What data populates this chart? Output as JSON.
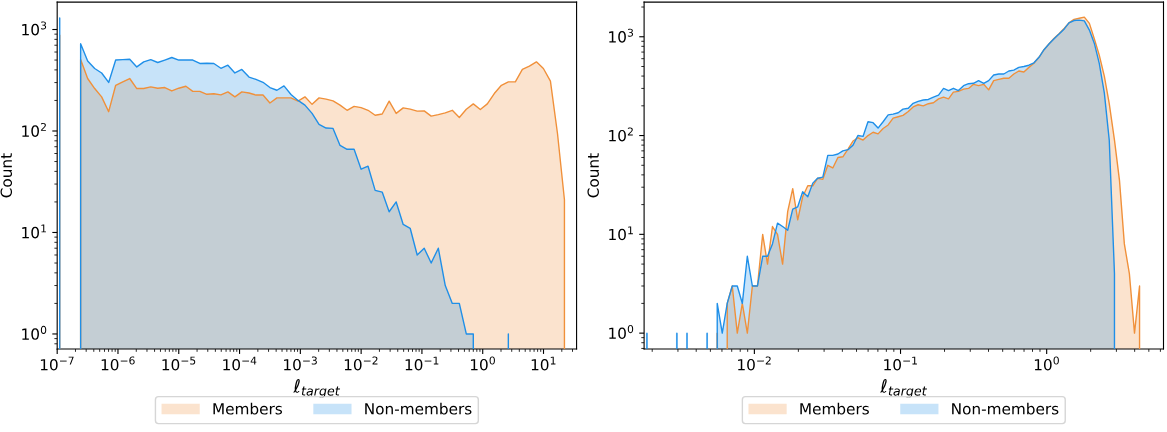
{
  "chart_data": [
    {
      "type": "area",
      "xlabel": "ℓ$_{target}$",
      "ylabel": "Count",
      "log": "xy",
      "grid": false,
      "legend": "bottom",
      "xlim": [
        1e-07,
        35
      ],
      "ylim": [
        0.71,
        1860
      ],
      "xticks": [
        {
          "value": 1e-07,
          "label": "10$^{−7}$"
        },
        {
          "value": 1e-06,
          "label": "10$^{−6}$"
        },
        {
          "value": 1e-05,
          "label": "10$^{−5}$"
        },
        {
          "value": 0.0001,
          "label": "10$^{−4}$"
        },
        {
          "value": 0.001,
          "label": "10$^{−3}$"
        },
        {
          "value": 0.01,
          "label": "10$^{−2}$"
        },
        {
          "value": 0.1,
          "label": "10$^{−1}$"
        },
        {
          "value": 1,
          "label": "10$^{0}$"
        },
        {
          "value": 10,
          "label": "10$^{1}$"
        }
      ],
      "yticks": [
        {
          "value": 1,
          "label": "10$^{0}$"
        },
        {
          "value": 10,
          "label": "10$^{1}$"
        },
        {
          "value": 100,
          "label": "10$^{2}$"
        },
        {
          "value": 1000,
          "label": "10$^{3}$"
        }
      ],
      "x": [
        1.1e-07,
        1.43e-07,
        1.86e-07,
        2.43e-07,
        3.17e-07,
        4.14e-07,
        5.39e-07,
        7.03e-07,
        9.17e-07,
        1.2e-06,
        1.56e-06,
        2.04e-06,
        2.65e-06,
        3.46e-06,
        4.51e-06,
        5.89e-06,
        7.68e-06,
        1e-05,
        1.31e-05,
        1.7e-05,
        2.22e-05,
        2.9e-05,
        3.78e-05,
        4.93e-05,
        6.43e-05,
        8.38e-05,
        0.000109,
        0.000143,
        0.000186,
        0.000243,
        0.000316,
        0.000412,
        0.000538,
        0.000702,
        0.000915,
        0.00119,
        0.00156,
        0.00203,
        0.00265,
        0.00345,
        0.0045,
        0.00587,
        0.00766,
        0.00999,
        0.013,
        0.017,
        0.0222,
        0.0289,
        0.0377,
        0.0492,
        0.0641,
        0.0836,
        0.109,
        0.142,
        0.186,
        0.242,
        0.316,
        0.412,
        0.537,
        0.7,
        0.913,
        1.19,
        1.55,
        2.03,
        2.64,
        3.44,
        4.49,
        5.86,
        7.64,
        9.96,
        13.0,
        17.0,
        22.1
      ],
      "series": [
        {
          "name": "Members",
          "color": "#f0903a",
          "values": [
            880,
            null,
            null,
            506,
            329,
            262,
            217,
            155,
            282,
            305,
            329,
            262,
            262,
            272,
            264,
            268,
            248,
            264,
            276,
            246,
            246,
            230,
            233,
            227,
            243,
            217,
            243,
            237,
            226,
            226,
            189,
            212,
            212,
            212,
            197,
            217,
            183,
            212,
            206,
            198,
            180,
            160,
            175,
            170,
            160,
            143,
            147,
            197,
            149,
            169,
            164,
            157,
            158,
            140,
            145,
            151,
            160,
            136,
            164,
            185,
            163,
            185,
            234,
            282,
            305,
            305,
            404,
            435,
            480,
            413,
            310,
            94,
            21
          ]
        },
        {
          "name": "Non-members",
          "color": "#1f8fe8",
          "values": [
            1300,
            null,
            null,
            725,
            490,
            413,
            373,
            301,
            500,
            505,
            510,
            428,
            480,
            505,
            473,
            500,
            530,
            500,
            500,
            500,
            463,
            465,
            463,
            415,
            445,
            373,
            404,
            340,
            322,
            302,
            268,
            252,
            278,
            229,
            200,
            180,
            149,
            116,
            107,
            106,
            72,
            66,
            66,
            42,
            45,
            26,
            25,
            16,
            20,
            12,
            11,
            6,
            7,
            5,
            7,
            3,
            2,
            2,
            1,
            1,
            null,
            null,
            null,
            null,
            1,
            null,
            null,
            null,
            null,
            null,
            null,
            null,
            null
          ]
        }
      ]
    },
    {
      "type": "area",
      "xlabel": "ℓ$_{target}$",
      "ylabel": "Count",
      "log": "xy",
      "grid": false,
      "legend": "bottom",
      "xlim": [
        0.00176,
        6.3
      ],
      "ylim": [
        0.69,
        2240
      ],
      "xticks": [
        {
          "value": 0.01,
          "label": "10$^{−2}$"
        },
        {
          "value": 0.1,
          "label": "10$^{−1}$"
        },
        {
          "value": 1,
          "label": "10$^{0}$"
        }
      ],
      "yticks": [
        {
          "value": 1,
          "label": "10$^{0}$"
        },
        {
          "value": 10,
          "label": "10$^{1}$"
        },
        {
          "value": 100,
          "label": "10$^{2}$"
        },
        {
          "value": 1000,
          "label": "10$^{3}$"
        }
      ],
      "x": [
        0.00184,
        0.00199,
        0.00215,
        0.00233,
        0.00252,
        0.00273,
        0.00295,
        0.0032,
        0.00346,
        0.00375,
        0.00406,
        0.00439,
        0.00475,
        0.00514,
        0.00557,
        0.00603,
        0.00652,
        0.00706,
        0.00764,
        0.00827,
        0.00895,
        0.00969,
        0.0105,
        0.0114,
        0.0123,
        0.0133,
        0.0144,
        0.0156,
        0.0169,
        0.0183,
        0.0198,
        0.0214,
        0.0232,
        0.0251,
        0.0271,
        0.0294,
        0.0318,
        0.0344,
        0.0373,
        0.0403,
        0.0437,
        0.0473,
        0.0511,
        0.0554,
        0.0599,
        0.0649,
        0.0702,
        0.076,
        0.0823,
        0.089,
        0.0964,
        0.104,
        0.113,
        0.122,
        0.132,
        0.143,
        0.155,
        0.168,
        0.182,
        0.197,
        0.213,
        0.23,
        0.249,
        0.27,
        0.292,
        0.316,
        0.342,
        0.371,
        0.401,
        0.434,
        0.47,
        0.509,
        0.551,
        0.596,
        0.645,
        0.698,
        0.756,
        0.818,
        0.886,
        0.959,
        1.04,
        1.12,
        1.22,
        1.32,
        1.42,
        1.54,
        1.67,
        1.81,
        1.96,
        2.12,
        2.29,
        2.48,
        2.68,
        2.91,
        3.15,
        3.4,
        3.68,
        3.99,
        4.32
      ],
      "series": [
        {
          "name": "Members",
          "color": "#f0903a",
          "values": [
            null,
            null,
            null,
            null,
            null,
            null,
            null,
            null,
            null,
            null,
            null,
            null,
            null,
            null,
            1,
            null,
            2,
            3,
            1,
            2,
            1,
            3,
            3,
            10,
            5,
            12,
            10,
            5,
            17,
            29,
            14,
            24,
            31,
            31,
            37,
            36,
            50,
            47,
            60,
            61,
            73,
            88,
            95,
            90,
            100,
            108,
            104,
            118,
            128,
            150,
            155,
            160,
            175,
            195,
            205,
            200,
            210,
            215,
            235,
            245,
            235,
            275,
            280,
            295,
            300,
            330,
            320,
            330,
            290,
            360,
            370,
            380,
            380,
            420,
            450,
            440,
            490,
            540,
            620,
            740,
            850,
            960,
            1080,
            1220,
            1380,
            1500,
            1540,
            1580,
            1366,
            950,
            650,
            400,
            210,
            90,
            35,
            8,
            4,
            1,
            3
          ]
        },
        {
          "name": "Non-members",
          "color": "#1f8fe8",
          "values": [
            1,
            null,
            null,
            null,
            null,
            null,
            1,
            null,
            1,
            null,
            null,
            null,
            1,
            null,
            2,
            1,
            2,
            3,
            3,
            2,
            6,
            3,
            3,
            6,
            6,
            8,
            13,
            12,
            11,
            18,
            19,
            27,
            24,
            33,
            37,
            38,
            63,
            63,
            65,
            70,
            72,
            80,
            100,
            98,
            138,
            135,
            119,
            138,
            162,
            165,
            170,
            185,
            189,
            212,
            222,
            229,
            232,
            245,
            257,
            300,
            285,
            301,
            285,
            320,
            335,
            338,
            360,
            338,
            360,
            410,
            420,
            420,
            450,
            460,
            490,
            500,
            515,
            545,
            620,
            740,
            850,
            950,
            1070,
            1200,
            1380,
            1460,
            1475,
            1450,
            1169,
            857,
            537,
            270,
            90,
            4,
            null,
            null,
            null,
            null,
            null
          ]
        }
      ]
    }
  ]
}
